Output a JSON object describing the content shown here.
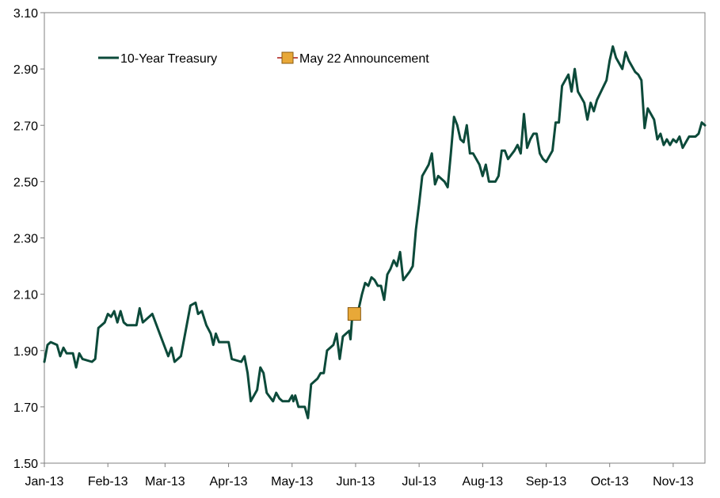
{
  "chart_data": {
    "type": "line",
    "title": "",
    "xlabel": "",
    "ylabel": "",
    "ylim": [
      1.5,
      3.1
    ],
    "yticks": [
      "1.50",
      "1.70",
      "1.90",
      "2.10",
      "2.30",
      "2.50",
      "2.70",
      "2.90",
      "3.10"
    ],
    "xlim": [
      0,
      10.4
    ],
    "xticks": [
      {
        "label": "Jan-13",
        "x": 0
      },
      {
        "label": "Feb-13",
        "x": 1
      },
      {
        "label": "Mar-13",
        "x": 1.9
      },
      {
        "label": "Apr-13",
        "x": 2.9
      },
      {
        "label": "May-13",
        "x": 3.9
      },
      {
        "label": "Jun-13",
        "x": 4.9
      },
      {
        "label": "Jul-13",
        "x": 5.9
      },
      {
        "label": "Aug-13",
        "x": 6.9
      },
      {
        "label": "Sep-13",
        "x": 7.9
      },
      {
        "label": "Oct-13",
        "x": 8.9
      },
      {
        "label": "Nov-13",
        "x": 9.9
      }
    ],
    "grid": false,
    "legend_position": "top-left",
    "legend": {
      "series_label": "10-Year Treasury",
      "marker_label": "May 22 Announcement"
    },
    "colors": {
      "series": "#0c4a3a",
      "marker_fill": "#e8a838",
      "marker_edge": "#8a5a10",
      "legend_marker_line": "#c0504d"
    },
    "series": [
      {
        "name": "10-Year Treasury",
        "points": [
          [
            0.0,
            1.86
          ],
          [
            0.05,
            1.92
          ],
          [
            0.1,
            1.93
          ],
          [
            0.2,
            1.92
          ],
          [
            0.25,
            1.88
          ],
          [
            0.3,
            1.91
          ],
          [
            0.35,
            1.89
          ],
          [
            0.45,
            1.89
          ],
          [
            0.5,
            1.84
          ],
          [
            0.55,
            1.89
          ],
          [
            0.6,
            1.87
          ],
          [
            0.75,
            1.86
          ],
          [
            0.8,
            1.87
          ],
          [
            0.85,
            1.98
          ],
          [
            0.95,
            2.0
          ],
          [
            1.0,
            2.03
          ],
          [
            1.05,
            2.02
          ],
          [
            1.1,
            2.04
          ],
          [
            1.15,
            2.0
          ],
          [
            1.2,
            2.04
          ],
          [
            1.25,
            2.0
          ],
          [
            1.3,
            1.99
          ],
          [
            1.45,
            1.99
          ],
          [
            1.5,
            2.05
          ],
          [
            1.55,
            2.0
          ],
          [
            1.7,
            2.03
          ],
          [
            1.8,
            1.97
          ],
          [
            1.95,
            1.88
          ],
          [
            2.0,
            1.91
          ],
          [
            2.05,
            1.86
          ],
          [
            2.15,
            1.88
          ],
          [
            2.25,
            2.0
          ],
          [
            2.3,
            2.06
          ],
          [
            2.38,
            2.07
          ],
          [
            2.42,
            2.03
          ],
          [
            2.48,
            2.04
          ],
          [
            2.55,
            1.99
          ],
          [
            2.62,
            1.96
          ],
          [
            2.66,
            1.92
          ],
          [
            2.7,
            1.96
          ],
          [
            2.75,
            1.93
          ],
          [
            2.9,
            1.93
          ],
          [
            2.95,
            1.87
          ],
          [
            3.1,
            1.86
          ],
          [
            3.15,
            1.88
          ],
          [
            3.2,
            1.82
          ],
          [
            3.25,
            1.72
          ],
          [
            3.35,
            1.76
          ],
          [
            3.4,
            1.84
          ],
          [
            3.45,
            1.82
          ],
          [
            3.5,
            1.75
          ],
          [
            3.6,
            1.72
          ],
          [
            3.65,
            1.75
          ],
          [
            3.7,
            1.73
          ],
          [
            3.75,
            1.72
          ],
          [
            3.85,
            1.72
          ],
          [
            3.9,
            1.74
          ],
          [
            3.92,
            1.72
          ],
          [
            3.95,
            1.74
          ],
          [
            4.0,
            1.7
          ],
          [
            4.1,
            1.7
          ],
          [
            4.15,
            1.66
          ],
          [
            4.2,
            1.78
          ],
          [
            4.3,
            1.8
          ],
          [
            4.35,
            1.82
          ],
          [
            4.4,
            1.82
          ],
          [
            4.45,
            1.9
          ],
          [
            4.55,
            1.92
          ],
          [
            4.6,
            1.96
          ],
          [
            4.65,
            1.87
          ],
          [
            4.7,
            1.95
          ],
          [
            4.75,
            1.96
          ],
          [
            4.8,
            1.97
          ],
          [
            4.82,
            1.94
          ],
          [
            4.85,
            2.03
          ],
          [
            4.95,
            2.05
          ],
          [
            5.0,
            2.1
          ],
          [
            5.05,
            2.14
          ],
          [
            5.1,
            2.13
          ],
          [
            5.15,
            2.16
          ],
          [
            5.2,
            2.15
          ],
          [
            5.25,
            2.13
          ],
          [
            5.3,
            2.13
          ],
          [
            5.35,
            2.08
          ],
          [
            5.4,
            2.17
          ],
          [
            5.45,
            2.19
          ],
          [
            5.5,
            2.22
          ],
          [
            5.55,
            2.2
          ],
          [
            5.6,
            2.25
          ],
          [
            5.65,
            2.15
          ],
          [
            5.75,
            2.18
          ],
          [
            5.8,
            2.2
          ],
          [
            5.85,
            2.33
          ],
          [
            5.9,
            2.42
          ],
          [
            5.95,
            2.52
          ],
          [
            6.0,
            2.54
          ],
          [
            6.05,
            2.56
          ],
          [
            6.1,
            2.6
          ],
          [
            6.15,
            2.49
          ],
          [
            6.2,
            2.52
          ],
          [
            6.3,
            2.5
          ],
          [
            6.35,
            2.48
          ],
          [
            6.4,
            2.6
          ],
          [
            6.45,
            2.73
          ],
          [
            6.5,
            2.7
          ],
          [
            6.55,
            2.65
          ],
          [
            6.6,
            2.64
          ],
          [
            6.65,
            2.7
          ],
          [
            6.7,
            2.6
          ],
          [
            6.75,
            2.6
          ],
          [
            6.85,
            2.56
          ],
          [
            6.9,
            2.52
          ],
          [
            6.95,
            2.56
          ],
          [
            7.0,
            2.5
          ],
          [
            7.1,
            2.5
          ],
          [
            7.15,
            2.52
          ],
          [
            7.2,
            2.61
          ],
          [
            7.25,
            2.61
          ],
          [
            7.3,
            2.58
          ],
          [
            7.4,
            2.61
          ],
          [
            7.45,
            2.63
          ],
          [
            7.5,
            2.6
          ],
          [
            7.55,
            2.74
          ],
          [
            7.6,
            2.62
          ],
          [
            7.65,
            2.65
          ],
          [
            7.7,
            2.67
          ],
          [
            7.75,
            2.67
          ],
          [
            7.8,
            2.6
          ],
          [
            7.85,
            2.58
          ],
          [
            7.9,
            2.57
          ],
          [
            8.0,
            2.61
          ],
          [
            8.05,
            2.71
          ],
          [
            8.1,
            2.71
          ],
          [
            8.15,
            2.84
          ],
          [
            8.2,
            2.86
          ],
          [
            8.25,
            2.88
          ],
          [
            8.3,
            2.82
          ],
          [
            8.35,
            2.9
          ],
          [
            8.4,
            2.82
          ],
          [
            8.45,
            2.8
          ],
          [
            8.5,
            2.78
          ],
          [
            8.55,
            2.72
          ],
          [
            8.6,
            2.78
          ],
          [
            8.65,
            2.75
          ],
          [
            8.7,
            2.79
          ],
          [
            8.85,
            2.86
          ],
          [
            8.9,
            2.93
          ],
          [
            8.95,
            2.98
          ],
          [
            9.0,
            2.94
          ],
          [
            9.05,
            2.92
          ],
          [
            9.1,
            2.9
          ],
          [
            9.15,
            2.96
          ],
          [
            9.2,
            2.93
          ],
          [
            9.3,
            2.89
          ],
          [
            9.35,
            2.88
          ],
          [
            9.4,
            2.86
          ],
          [
            9.45,
            2.69
          ],
          [
            9.5,
            2.76
          ],
          [
            9.55,
            2.74
          ],
          [
            9.6,
            2.72
          ],
          [
            9.65,
            2.65
          ],
          [
            9.7,
            2.67
          ],
          [
            9.75,
            2.63
          ],
          [
            9.8,
            2.65
          ],
          [
            9.85,
            2.63
          ],
          [
            9.9,
            2.65
          ],
          [
            9.95,
            2.64
          ],
          [
            10.0,
            2.66
          ],
          [
            10.05,
            2.62
          ],
          [
            10.1,
            2.64
          ],
          [
            10.15,
            2.66
          ],
          [
            10.25,
            2.66
          ],
          [
            10.3,
            2.67
          ],
          [
            10.35,
            2.71
          ],
          [
            10.4,
            2.7
          ]
        ]
      }
    ],
    "annotation": {
      "label": "May 22 Announcement",
      "x": 4.88,
      "y": 2.03
    }
  }
}
